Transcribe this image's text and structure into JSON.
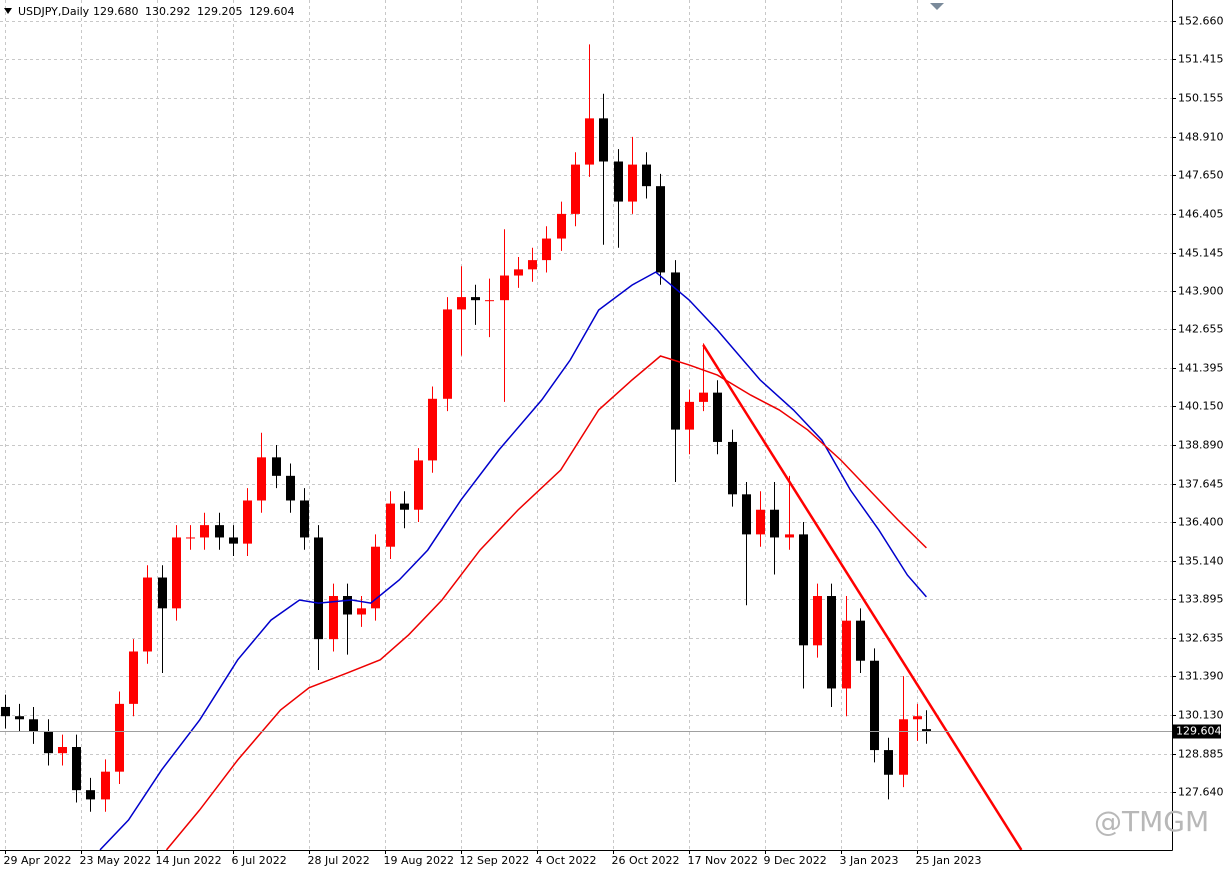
{
  "chart_data": {
    "type": "candlestick",
    "title": "USDJPY,Daily",
    "ohlc_labels": [
      "129.680",
      "130.292",
      "129.205",
      "129.604"
    ],
    "up_color": "#ff0000",
    "down_color": "#000000",
    "x": [
      0,
      3,
      6,
      9,
      12,
      15,
      18,
      21,
      24,
      27,
      30,
      33,
      36,
      39,
      42,
      45,
      48,
      51,
      54,
      57,
      60,
      63,
      66,
      69,
      72,
      75,
      78,
      81,
      84,
      87,
      90,
      93,
      96,
      99,
      102,
      105,
      108,
      111,
      114,
      117,
      120,
      123,
      126,
      129,
      132,
      135,
      138,
      141,
      144,
      147,
      150,
      153,
      156,
      159,
      162,
      165,
      168,
      171,
      174,
      177,
      180,
      183,
      186,
      189,
      192,
      194
    ],
    "open": [
      130.4,
      130.1,
      130.0,
      129.6,
      128.9,
      129.1,
      127.7,
      127.4,
      128.3,
      130.5,
      132.2,
      134.6,
      133.6,
      135.9,
      135.9,
      136.3,
      135.9,
      135.7,
      137.1,
      138.5,
      137.9,
      137.1,
      135.9,
      132.6,
      134.0,
      133.4,
      133.6,
      135.6,
      137.0,
      136.8,
      138.4,
      140.4,
      143.3,
      143.7,
      143.6,
      143.6,
      144.4,
      144.6,
      144.9,
      145.6,
      146.4,
      148.0,
      149.5,
      148.1,
      146.8,
      148.0,
      147.3,
      144.5,
      139.4,
      140.3,
      140.6,
      139.0,
      137.3,
      136.0,
      136.8,
      135.9,
      136.0,
      132.4,
      134.0,
      131.0,
      133.2,
      131.9,
      129.0,
      128.2,
      130.0,
      129.68
    ],
    "high": [
      130.8,
      130.5,
      130.4,
      130.0,
      129.5,
      129.5,
      128.1,
      128.7,
      130.9,
      132.6,
      135.0,
      135.0,
      136.3,
      136.3,
      136.7,
      136.7,
      136.3,
      137.5,
      139.3,
      138.9,
      138.3,
      137.5,
      136.3,
      134.4,
      134.4,
      134.0,
      136.0,
      137.4,
      137.4,
      138.8,
      140.8,
      143.7,
      144.7,
      144.1,
      144.3,
      145.9,
      145.0,
      145.3,
      146.0,
      146.8,
      148.4,
      151.9,
      150.3,
      148.5,
      148.9,
      148.4,
      147.7,
      144.9,
      140.7,
      142.2,
      141.0,
      139.4,
      137.7,
      137.4,
      137.7,
      137.9,
      136.4,
      134.4,
      134.4,
      134.0,
      133.6,
      132.3,
      129.4,
      131.4,
      130.5,
      130.292
    ],
    "low": [
      129.7,
      129.6,
      129.2,
      128.5,
      128.5,
      127.3,
      127.0,
      127.0,
      127.9,
      130.1,
      131.8,
      131.5,
      133.2,
      135.5,
      135.5,
      135.5,
      135.3,
      135.3,
      136.7,
      137.5,
      136.7,
      135.5,
      131.6,
      132.2,
      132.1,
      133.0,
      133.2,
      135.2,
      136.2,
      136.4,
      138.0,
      140.0,
      141.8,
      142.8,
      142.4,
      140.3,
      144.0,
      144.2,
      144.5,
      145.2,
      146.0,
      147.6,
      145.4,
      145.3,
      146.4,
      146.9,
      144.1,
      137.7,
      138.6,
      140.0,
      138.6,
      136.9,
      133.7,
      135.6,
      134.7,
      135.5,
      131.0,
      132.0,
      130.4,
      130.1,
      131.5,
      128.6,
      127.4,
      127.8,
      129.3,
      129.205
    ],
    "close": [
      130.1,
      130.0,
      129.6,
      128.9,
      129.1,
      127.7,
      127.4,
      128.3,
      130.5,
      132.2,
      134.6,
      133.6,
      135.9,
      135.9,
      136.3,
      135.9,
      135.7,
      137.1,
      138.5,
      137.9,
      137.1,
      135.9,
      132.6,
      134.0,
      133.4,
      133.6,
      135.6,
      137.0,
      136.8,
      138.4,
      140.4,
      143.3,
      143.7,
      143.6,
      143.6,
      144.4,
      144.6,
      144.9,
      145.6,
      146.4,
      148.0,
      149.5,
      148.1,
      146.8,
      148.0,
      147.3,
      144.5,
      139.4,
      140.3,
      140.6,
      139.0,
      137.3,
      136.0,
      136.8,
      135.9,
      136.0,
      132.4,
      134.0,
      131.0,
      133.2,
      131.9,
      129.0,
      128.2,
      130.0,
      130.1,
      129.604
    ],
    "lines": [
      {
        "color": "#0000cc",
        "x": [
          20,
          26,
          33,
          41,
          49,
          56,
          62,
          66,
          73,
          77,
          83,
          89,
          96,
          104,
          113,
          119,
          125,
          132,
          137,
          144,
          150,
          159,
          166,
          172,
          178,
          184,
          190,
          194
        ],
        "values": [
          125.76,
          126.73,
          128.36,
          129.98,
          131.93,
          133.22,
          133.87,
          133.77,
          133.87,
          133.77,
          134.52,
          135.49,
          137.12,
          138.74,
          140.36,
          141.66,
          143.28,
          144.09,
          144.51,
          143.61,
          142.63,
          141.01,
          140.04,
          139.06,
          137.44,
          136.14,
          134.68,
          133.97
        ]
      },
      {
        "color": "#ee0000",
        "x": [
          34,
          41,
          49,
          58,
          64,
          72,
          79,
          85,
          92,
          100,
          108,
          117,
          125,
          132,
          138,
          144,
          150,
          157,
          163,
          169,
          176,
          182,
          188,
          194
        ],
        "values": [
          125.76,
          127.06,
          128.68,
          130.3,
          131.02,
          131.5,
          131.93,
          132.74,
          133.87,
          135.49,
          136.79,
          138.09,
          140.04,
          141.01,
          141.79,
          141.5,
          141.17,
          140.52,
          140.04,
          139.39,
          138.41,
          137.44,
          136.47,
          135.56
        ]
      }
    ],
    "trendline": {
      "color": "#ff0000",
      "x": [
        147,
        214
      ],
      "values": [
        142.15,
        125.76
      ]
    },
    "last_price": {
      "value": 129.604,
      "label": "129.604"
    },
    "xlim": [
      -1.05,
      245.7
    ],
    "ylim": [
      125.758,
      153.341
    ],
    "xticks": [
      {
        "value": 0,
        "label": "29 Apr 2022"
      },
      {
        "value": 16,
        "label": "23 May 2022"
      },
      {
        "value": 32,
        "label": "14 Jun 2022"
      },
      {
        "value": 48,
        "label": "6 Jul 2022"
      },
      {
        "value": 64,
        "label": "28 Jul 2022"
      },
      {
        "value": 80,
        "label": "19 Aug 2022"
      },
      {
        "value": 96,
        "label": "12 Sep 2022"
      },
      {
        "value": 112,
        "label": "4 Oct 2022"
      },
      {
        "value": 128,
        "label": "26 Oct 2022"
      },
      {
        "value": 144,
        "label": "17 Nov 2022"
      },
      {
        "value": 160,
        "label": "9 Dec 2022"
      },
      {
        "value": 176,
        "label": "3 Jan 2023"
      },
      {
        "value": 192,
        "label": "25 Jan 2023"
      }
    ],
    "yticks": [
      {
        "value": 152.66,
        "label": "152.660"
      },
      {
        "value": 151.415,
        "label": "151.415"
      },
      {
        "value": 150.155,
        "label": "150.155"
      },
      {
        "value": 148.91,
        "label": "148.910"
      },
      {
        "value": 147.65,
        "label": "147.650"
      },
      {
        "value": 146.405,
        "label": "146.405"
      },
      {
        "value": 145.145,
        "label": "145.145"
      },
      {
        "value": 143.9,
        "label": "143.900"
      },
      {
        "value": 142.655,
        "label": "142.655"
      },
      {
        "value": 141.395,
        "label": "141.395"
      },
      {
        "value": 140.15,
        "label": "140.150"
      },
      {
        "value": 138.89,
        "label": "138.890"
      },
      {
        "value": 137.645,
        "label": "137.645"
      },
      {
        "value": 136.4,
        "label": "136.400"
      },
      {
        "value": 135.14,
        "label": "135.140"
      },
      {
        "value": 133.895,
        "label": "133.895"
      },
      {
        "value": 132.635,
        "label": "132.635"
      },
      {
        "value": 131.39,
        "label": "131.390"
      },
      {
        "value": 130.13,
        "label": "130.130"
      },
      {
        "value": 128.885,
        "label": "128.885"
      },
      {
        "value": 127.64,
        "label": "127.640"
      }
    ],
    "grid": true,
    "watermark": "@TMGM"
  }
}
